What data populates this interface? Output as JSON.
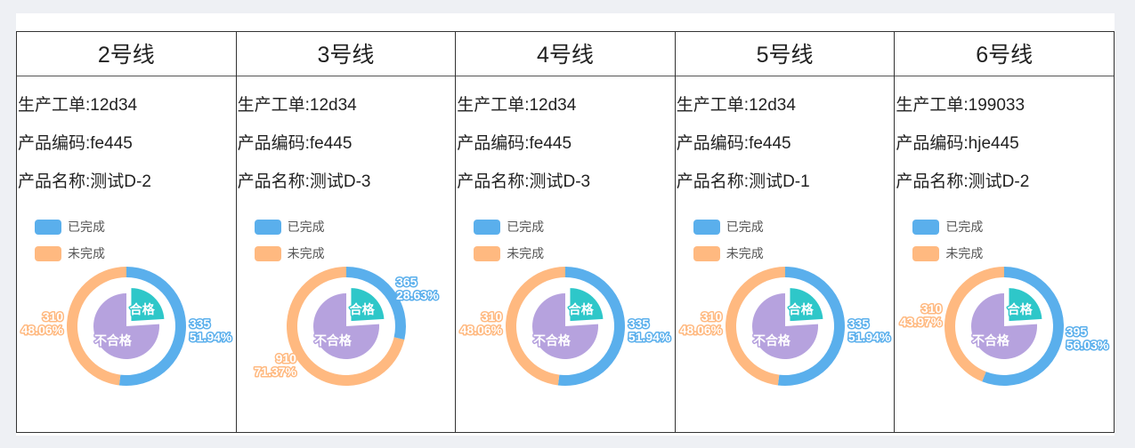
{
  "colors": {
    "done": "#5aafec",
    "undone": "#ffb980",
    "pass": "#2ec7c9",
    "fail": "#b6a2de"
  },
  "legend": {
    "done": "已完成",
    "undone": "未完成"
  },
  "labels": {
    "order": "生产工单:",
    "code": "产品编码:",
    "name": "产品名称:"
  },
  "panels": [
    {
      "title": "2号线",
      "order": "12d34",
      "code": "fe445",
      "name": "测试D-2",
      "chart_data": {
        "type": "pie",
        "series": [
          {
            "name": "已完成/未完成",
            "categories": [
              "已完成",
              "未完成"
            ],
            "values": [
              335,
              310
            ],
            "percent_labels": [
              "51.94%",
              "48.06%"
            ]
          },
          {
            "name": "合格/不合格",
            "categories": [
              "合格",
              "不合格"
            ],
            "values": [
              0.24,
              0.76
            ]
          }
        ]
      }
    },
    {
      "title": "3号线",
      "order": "12d34",
      "code": "fe445",
      "name": "测试D-3",
      "chart_data": {
        "type": "pie",
        "series": [
          {
            "name": "已完成/未完成",
            "categories": [
              "已完成",
              "未完成"
            ],
            "values": [
              365,
              910
            ],
            "percent_labels": [
              "28.63%",
              "71.37%"
            ]
          },
          {
            "name": "合格/不合格",
            "categories": [
              "合格",
              "不合格"
            ],
            "values": [
              0.24,
              0.76
            ]
          }
        ]
      }
    },
    {
      "title": "4号线",
      "order": "12d34",
      "code": "fe445",
      "name": "测试D-3",
      "chart_data": {
        "type": "pie",
        "series": [
          {
            "name": "已完成/未完成",
            "categories": [
              "已完成",
              "未完成"
            ],
            "values": [
              335,
              310
            ],
            "percent_labels": [
              "51.94%",
              "48.06%"
            ]
          },
          {
            "name": "合格/不合格",
            "categories": [
              "合格",
              "不合格"
            ],
            "values": [
              0.24,
              0.76
            ]
          }
        ]
      }
    },
    {
      "title": "5号线",
      "order": "12d34",
      "code": "fe445",
      "name": "测试D-1",
      "chart_data": {
        "type": "pie",
        "series": [
          {
            "name": "已完成/未完成",
            "categories": [
              "已完成",
              "未完成"
            ],
            "values": [
              335,
              310
            ],
            "percent_labels": [
              "51.94%",
              "48.06%"
            ]
          },
          {
            "name": "合格/不合格",
            "categories": [
              "合格",
              "不合格"
            ],
            "values": [
              0.24,
              0.76
            ]
          }
        ]
      }
    },
    {
      "title": "6号线",
      "order": "199033",
      "code": "hje445",
      "name": "测试D-2",
      "chart_data": {
        "type": "pie",
        "series": [
          {
            "name": "已完成/未完成",
            "categories": [
              "已完成",
              "未完成"
            ],
            "values": [
              395,
              310
            ],
            "percent_labels": [
              "56.03%",
              "43.97%"
            ]
          },
          {
            "name": "合格/不合格",
            "categories": [
              "合格",
              "不合格"
            ],
            "values": [
              0.24,
              0.76
            ]
          }
        ]
      }
    }
  ]
}
